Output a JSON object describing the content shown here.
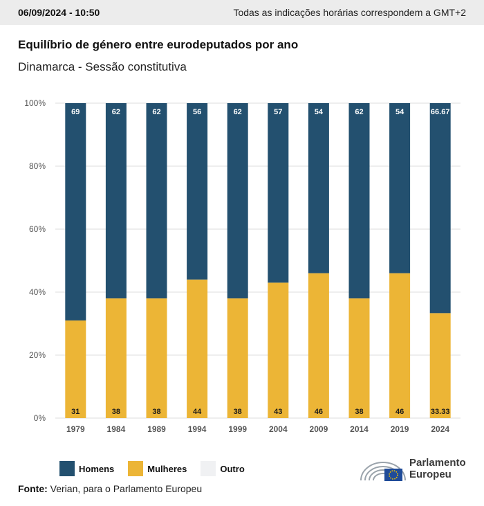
{
  "header": {
    "datetime": "06/09/2024 - 10:50",
    "timezone_note": "Todas as indicações horárias correspondem a GMT+2"
  },
  "title": "Equilíbrio de género entre eurodeputados por ano",
  "subtitle": "Dinamarca - Sessão constitutiva",
  "chart_data": {
    "type": "bar",
    "stacked": true,
    "categories": [
      "1979",
      "1984",
      "1989",
      "1994",
      "1999",
      "2004",
      "2009",
      "2014",
      "2019",
      "2024"
    ],
    "series": [
      {
        "name": "Mulheres",
        "color": "#ecb536",
        "values": [
          31,
          38,
          38,
          44,
          38,
          43,
          46,
          38,
          46,
          33.33
        ],
        "labels": [
          "31",
          "38",
          "38",
          "44",
          "38",
          "43",
          "46",
          "38",
          "46",
          "33.33"
        ]
      },
      {
        "name": "Homens",
        "color": "#23506f",
        "values": [
          69,
          62,
          62,
          56,
          62,
          57,
          54,
          62,
          54,
          66.67
        ],
        "labels": [
          "69",
          "62",
          "62",
          "56",
          "62",
          "57",
          "54",
          "62",
          "54",
          "66.67"
        ]
      },
      {
        "name": "Outro",
        "color": "#f0f1f3",
        "values": [
          0,
          0,
          0,
          0,
          0,
          0,
          0,
          0,
          0,
          0
        ]
      }
    ],
    "yticks": [
      "0%",
      "20%",
      "40%",
      "60%",
      "80%",
      "100%"
    ],
    "ylim": [
      0,
      100
    ],
    "grid": true,
    "legend_position": "bottom-left"
  },
  "legend": [
    {
      "label": "Homens",
      "color": "#23506f"
    },
    {
      "label": "Mulheres",
      "color": "#ecb536"
    },
    {
      "label": "Outro",
      "color": "#f0f1f3"
    }
  ],
  "source": {
    "label": "Fonte:",
    "text": "Verian, para o Parlamento Europeu"
  },
  "logo": {
    "line1": "Parlamento",
    "line2": "Europeu",
    "icon": "european-parliament-hemicycle-icon"
  }
}
